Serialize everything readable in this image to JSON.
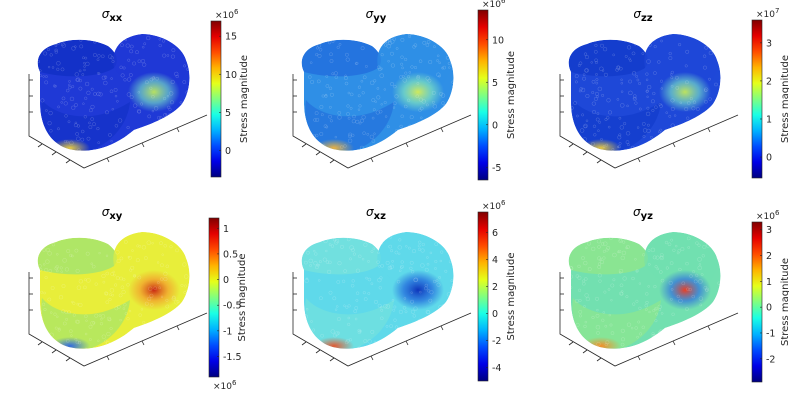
{
  "chart_data": [
    {
      "type": "scatter",
      "title_symbol": "σ",
      "title_subscript": "xx",
      "colorbar": {
        "label": "Stress magnitude",
        "exponent_base": "×10",
        "exponent": "6",
        "exponent_position": "top",
        "ticks": [
          "15",
          "10",
          "5",
          "0"
        ],
        "tick_values": [
          15,
          10,
          5,
          0
        ],
        "range": [
          -3.5,
          17
        ],
        "colormap": "jet"
      },
      "color_field": {
        "main": "#1f39d6",
        "left_lobe_front": "#0a2cbe",
        "hotspot": "#6fd0c6",
        "hotspot_core": "#bfe95a",
        "edge_hot": "#f0d23a"
      }
    },
    {
      "type": "scatter",
      "title_symbol": "σ",
      "title_subscript": "yy",
      "colorbar": {
        "label": "Stress magnitude",
        "exponent_base": "×10",
        "exponent": "6",
        "exponent_position": "top",
        "ticks": [
          "10",
          "5",
          "0",
          "-5"
        ],
        "tick_values": [
          10,
          5,
          0,
          -5
        ],
        "range": [
          -6.5,
          13.5
        ],
        "colormap": "jet"
      },
      "color_field": {
        "main": "#2f8fe6",
        "left_lobe_front": "#1c5fd8",
        "hotspot": "#7fe3c0",
        "hotspot_core": "#d8ee55",
        "edge_hot": "#f3b53a"
      }
    },
    {
      "type": "scatter",
      "title_symbol": "σ",
      "title_subscript": "zz",
      "colorbar": {
        "label": "Stress magnitude",
        "exponent_base": "×10",
        "exponent": "7",
        "exponent_position": "top",
        "ticks": [
          "3",
          "2",
          "1",
          "0"
        ],
        "tick_values": [
          3,
          2,
          1,
          0
        ],
        "range": [
          -0.55,
          3.6
        ],
        "colormap": "jet"
      },
      "color_field": {
        "main": "#1e48d8",
        "left_lobe_front": "#0c35c5",
        "hotspot": "#72d6c8",
        "hotspot_core": "#c5ea58",
        "edge_hot": "#f0cf3a"
      }
    },
    {
      "type": "scatter",
      "title_symbol": "σ",
      "title_subscript": "xy",
      "colorbar": {
        "label": "Stress magnitude",
        "exponent_base": "×10",
        "exponent": "6",
        "exponent_position": "bottom",
        "ticks": [
          "1",
          "0.5",
          "0",
          "-0.5",
          "-1",
          "-1.5"
        ],
        "tick_values": [
          1,
          0.5,
          0,
          -0.5,
          -1,
          -1.5
        ],
        "range": [
          -1.9,
          1.2
        ],
        "colormap": "jet"
      },
      "color_field": {
        "main": "#e8ee3a",
        "left_lobe_front": "#7fe08a",
        "hotspot": "#f39b2c",
        "hotspot_core": "#c81e12",
        "edge_hot": "#2a63e8"
      }
    },
    {
      "type": "scatter",
      "title_symbol": "σ",
      "title_subscript": "xz",
      "colorbar": {
        "label": "Stress magnitude",
        "exponent_base": "×10",
        "exponent": "6",
        "exponent_position": "top",
        "ticks": [
          "6",
          "4",
          "2",
          "0",
          "-2",
          "-4"
        ],
        "tick_values": [
          6,
          4,
          2,
          0,
          -2,
          -4
        ],
        "range": [
          -5,
          7.5
        ],
        "colormap": "jet"
      },
      "color_field": {
        "main": "#5fd9ea",
        "left_lobe_front": "#7fe6d6",
        "hotspot": "#1f64dc",
        "hotspot_core": "#0a2cb8",
        "edge_hot": "#e8542a"
      }
    },
    {
      "type": "scatter",
      "title_symbol": "σ",
      "title_subscript": "yz",
      "colorbar": {
        "label": "Stress magnitude",
        "exponent_base": "×10",
        "exponent": "6",
        "exponent_position": "top",
        "ticks": [
          "3",
          "2",
          "1",
          "0",
          "-1",
          "-2"
        ],
        "tick_values": [
          3,
          2,
          1,
          0,
          -1,
          -2
        ],
        "range": [
          -2.9,
          3.3
        ],
        "colormap": "jet"
      },
      "color_field": {
        "main": "#72e0b0",
        "left_lobe_front": "#9fea7a",
        "hotspot": "#2f6fe0",
        "hotspot_core": "#f0381e",
        "edge_hot": "#f88a22"
      }
    }
  ]
}
